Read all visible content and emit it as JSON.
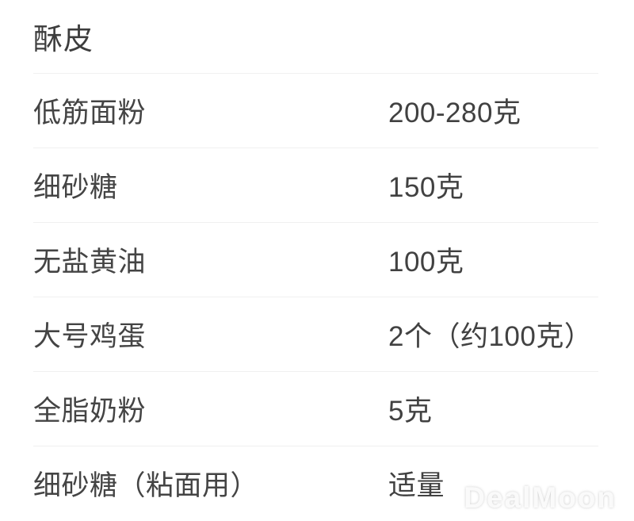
{
  "section_title": "酥皮",
  "ingredients": [
    {
      "name": "低筋面粉",
      "amount": "200-280克"
    },
    {
      "name": "细砂糖",
      "amount": "150克"
    },
    {
      "name": "无盐黄油",
      "amount": "100克"
    },
    {
      "name": "大号鸡蛋",
      "amount": "2个（约100克）"
    },
    {
      "name": "全脂奶粉",
      "amount": "5克"
    },
    {
      "name": "细砂糖（粘面用）",
      "amount": "适量"
    }
  ],
  "watermark": "DealMoon",
  "colors": {
    "background": "#ffffff",
    "text": "#414141",
    "divider": "#f0f0f0",
    "watermark": "#fcfcfc"
  }
}
